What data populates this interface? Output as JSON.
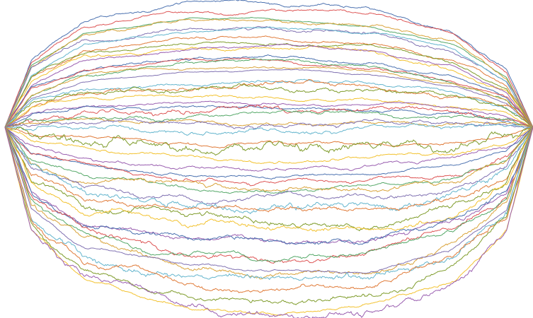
{
  "chart_data": {
    "type": "line",
    "title": "",
    "xlabel": "",
    "ylabel": "",
    "x_range": [
      0,
      1
    ],
    "y_range": [
      -1,
      1
    ],
    "grid": false,
    "legend": "none",
    "axes_visible": false,
    "description_of_data": "",
    "series_count": 50,
    "samples_per_series": 500,
    "start_value": 0,
    "end_value": 0,
    "palette": [
      "#4C72B0",
      "#DD5555",
      "#55A868",
      "#D9A33A",
      "#8172B2",
      "#64B5CD",
      "#E07B39",
      "#7F9C2B",
      "#F2C230",
      "#9A5FB0"
    ],
    "envelope": {
      "upper": [
        {
          "x": 0,
          "y": 0
        },
        {
          "x": 0.05,
          "y": 0.55
        },
        {
          "x": 0.15,
          "y": 0.85
        },
        {
          "x": 0.35,
          "y": 0.98
        },
        {
          "x": 0.5,
          "y": 1.0
        },
        {
          "x": 0.7,
          "y": 0.93
        },
        {
          "x": 0.85,
          "y": 0.75
        },
        {
          "x": 0.95,
          "y": 0.45
        },
        {
          "x": 1,
          "y": 0
        }
      ],
      "lower": [
        {
          "x": 0,
          "y": 0
        },
        {
          "x": 0.05,
          "y": -0.55
        },
        {
          "x": 0.15,
          "y": -0.8
        },
        {
          "x": 0.35,
          "y": -0.96
        },
        {
          "x": 0.5,
          "y": -1.0
        },
        {
          "x": 0.7,
          "y": -0.97
        },
        {
          "x": 0.85,
          "y": -0.82
        },
        {
          "x": 0.95,
          "y": -0.55
        },
        {
          "x": 1,
          "y": 0
        }
      ]
    }
  }
}
